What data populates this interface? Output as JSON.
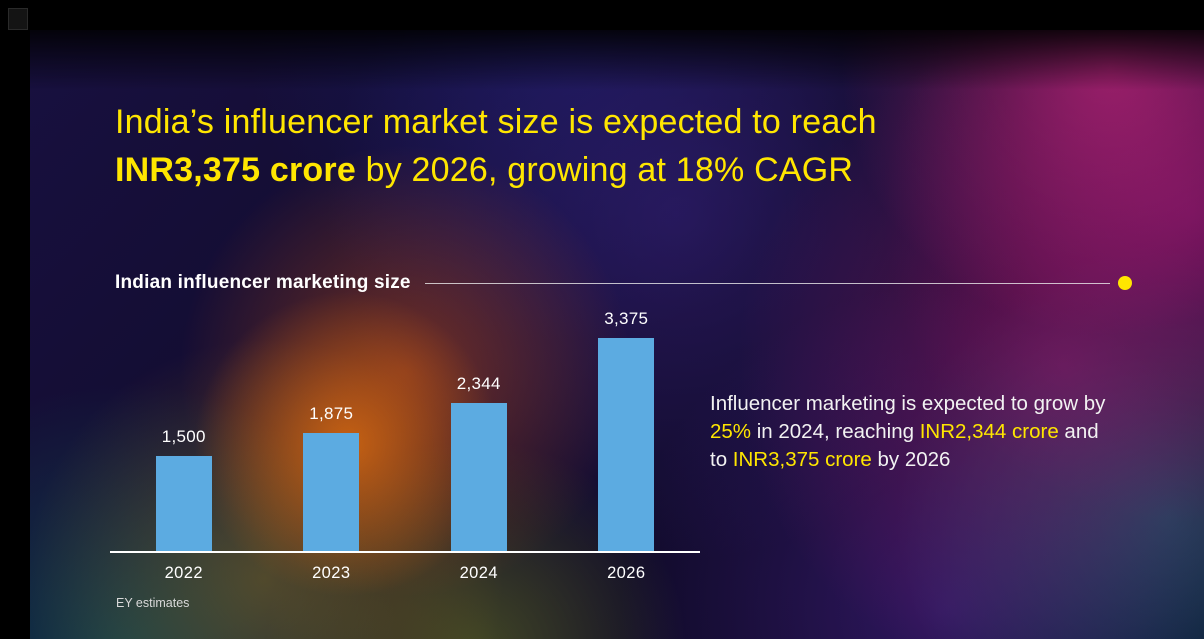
{
  "title": {
    "segments": [
      {
        "text": "India’s influencer market size is expected to reach"
      },
      {
        "text": "INR3,375 crore",
        "bold": true
      },
      {
        "text": " by 2026, growing at 18% CAGR"
      }
    ]
  },
  "chart_data": {
    "type": "bar",
    "title": "Indian influencer marketing size",
    "categories": [
      "2022",
      "2023",
      "2024",
      "2026"
    ],
    "values": [
      1500,
      1875,
      2344,
      3375
    ],
    "value_labels": [
      "1,500",
      "1,875",
      "2,344",
      "3,375"
    ],
    "xlabel": "",
    "ylabel": "",
    "ylim": [
      0,
      3600
    ],
    "grid": false,
    "legend": "none",
    "bar_color": "#5CABE1",
    "source": "EY estimates"
  },
  "annotation": {
    "segments": [
      {
        "text": "Influencer marketing is expected to grow by "
      },
      {
        "text": "25%",
        "highlight": true
      },
      {
        "text": " in 2024, reaching "
      },
      {
        "text": "INR2,344 crore",
        "highlight": true
      },
      {
        "text": " and to "
      },
      {
        "text": "INR3,375 crore",
        "highlight": true
      },
      {
        "text": " by 2026"
      }
    ]
  },
  "colors": {
    "accent_yellow": "#FFE600",
    "bar_blue": "#5CABE1",
    "text_white": "#F2F2F2"
  }
}
